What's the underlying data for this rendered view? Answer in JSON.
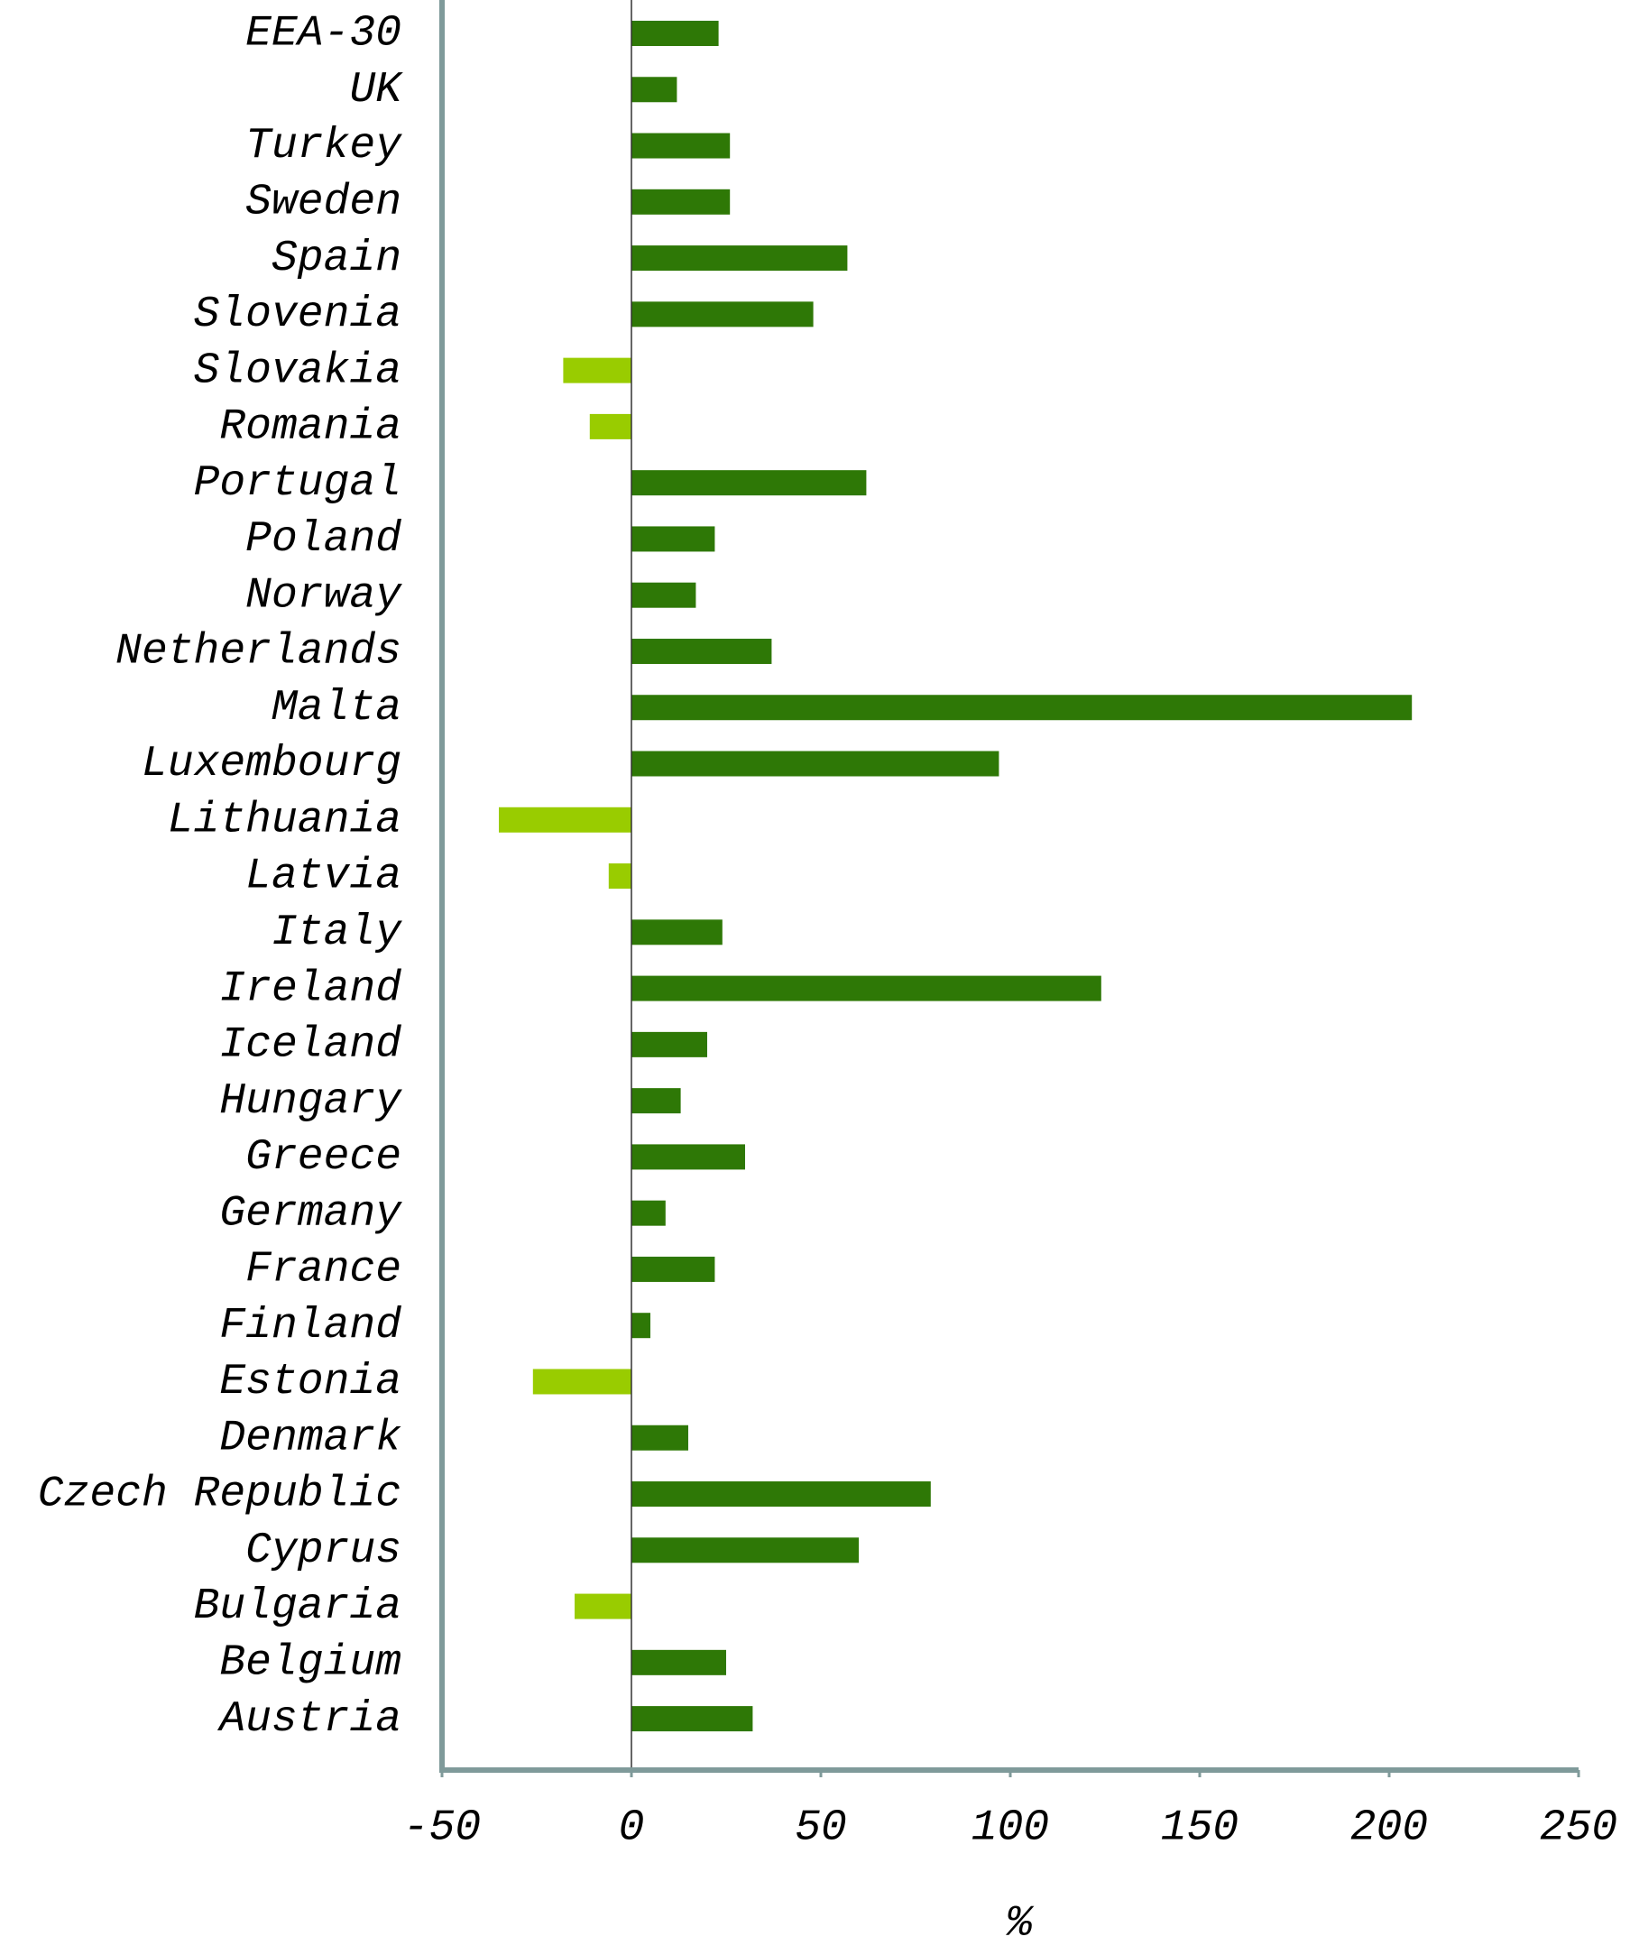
{
  "chart_data": {
    "type": "barh",
    "xlabel": "%",
    "categories": [
      "EEA-30",
      "UK",
      "Turkey",
      "Sweden",
      "Spain",
      "Slovenia",
      "Slovakia",
      "Romania",
      "Portugal",
      "Poland",
      "Norway",
      "Netherlands",
      "Malta",
      "Luxembourg",
      "Lithuania",
      "Latvia",
      "Italy",
      "Ireland",
      "Iceland",
      "Hungary",
      "Greece",
      "Germany",
      "France",
      "Finland",
      "Estonia",
      "Denmark",
      "Czech Republic",
      "Cyprus",
      "Bulgaria",
      "Belgium",
      "Austria"
    ],
    "values": [
      23,
      12,
      26,
      26,
      57,
      48,
      -18,
      -11,
      62,
      22,
      17,
      37,
      206,
      97,
      -35,
      -6,
      24,
      124,
      20,
      13,
      30,
      9,
      22,
      5,
      -26,
      15,
      79,
      60,
      -15,
      25,
      32
    ],
    "color": "#2e7806",
    "negative_color": "#99cc00",
    "xlim": [
      -50,
      250
    ],
    "xticks": [
      -50,
      0,
      50,
      100,
      150,
      200,
      250
    ]
  }
}
